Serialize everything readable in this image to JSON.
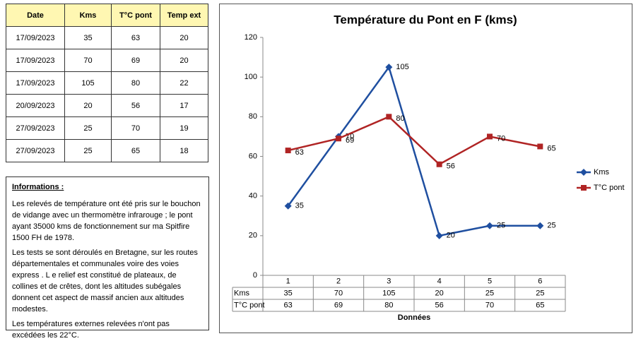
{
  "table": {
    "header": [
      "Date",
      "Kms",
      "T°C pont",
      "Temp ext"
    ],
    "rows": [
      [
        "17/09/2023",
        35,
        63,
        20
      ],
      [
        "17/09/2023",
        70,
        69,
        20
      ],
      [
        "17/09/2023",
        105,
        80,
        22
      ],
      [
        "20/09/2023",
        20,
        56,
        17
      ],
      [
        "27/09/2023",
        25,
        70,
        19
      ],
      [
        "27/09/2023",
        25,
        65,
        18
      ]
    ]
  },
  "info": {
    "title": "Informations :",
    "paragraphs": [
      "Les relevés de température ont été pris sur le bouchon de vidange avec un thermomètre infrarouge ; le pont ayant  35000 kms de fonctionnement sur ma  Spitfire 1500 FH de 1978.",
      "Les tests se sont déroulés  en  Bretagne, sur les routes départementales et communales  voire des voies express . L e relief est constitué de plateaux, de collines et de crêtes, dont les altitudes subégales donnent cet aspect de massif ancien aux altitudes modestes.",
      "Les températures externes relevées  n'ont pas excédées les 22°C."
    ]
  },
  "chart_data": {
    "type": "line",
    "title": "Température du Pont en F (kms)",
    "x_label": "Données",
    "categories": [
      1,
      2,
      3,
      4,
      5,
      6
    ],
    "series": [
      {
        "name": "Kms",
        "color": "#1f4fa0",
        "marker": "diamond",
        "values": [
          35,
          70,
          105,
          20,
          25,
          25
        ]
      },
      {
        "name": "T°C pont",
        "color": "#b02424",
        "marker": "square",
        "values": [
          63,
          69,
          80,
          56,
          70,
          65
        ]
      }
    ],
    "ylim": [
      0,
      120
    ],
    "yticks": [
      0,
      20,
      40,
      60,
      80,
      100,
      120
    ],
    "legend": "right",
    "data_table": true
  }
}
